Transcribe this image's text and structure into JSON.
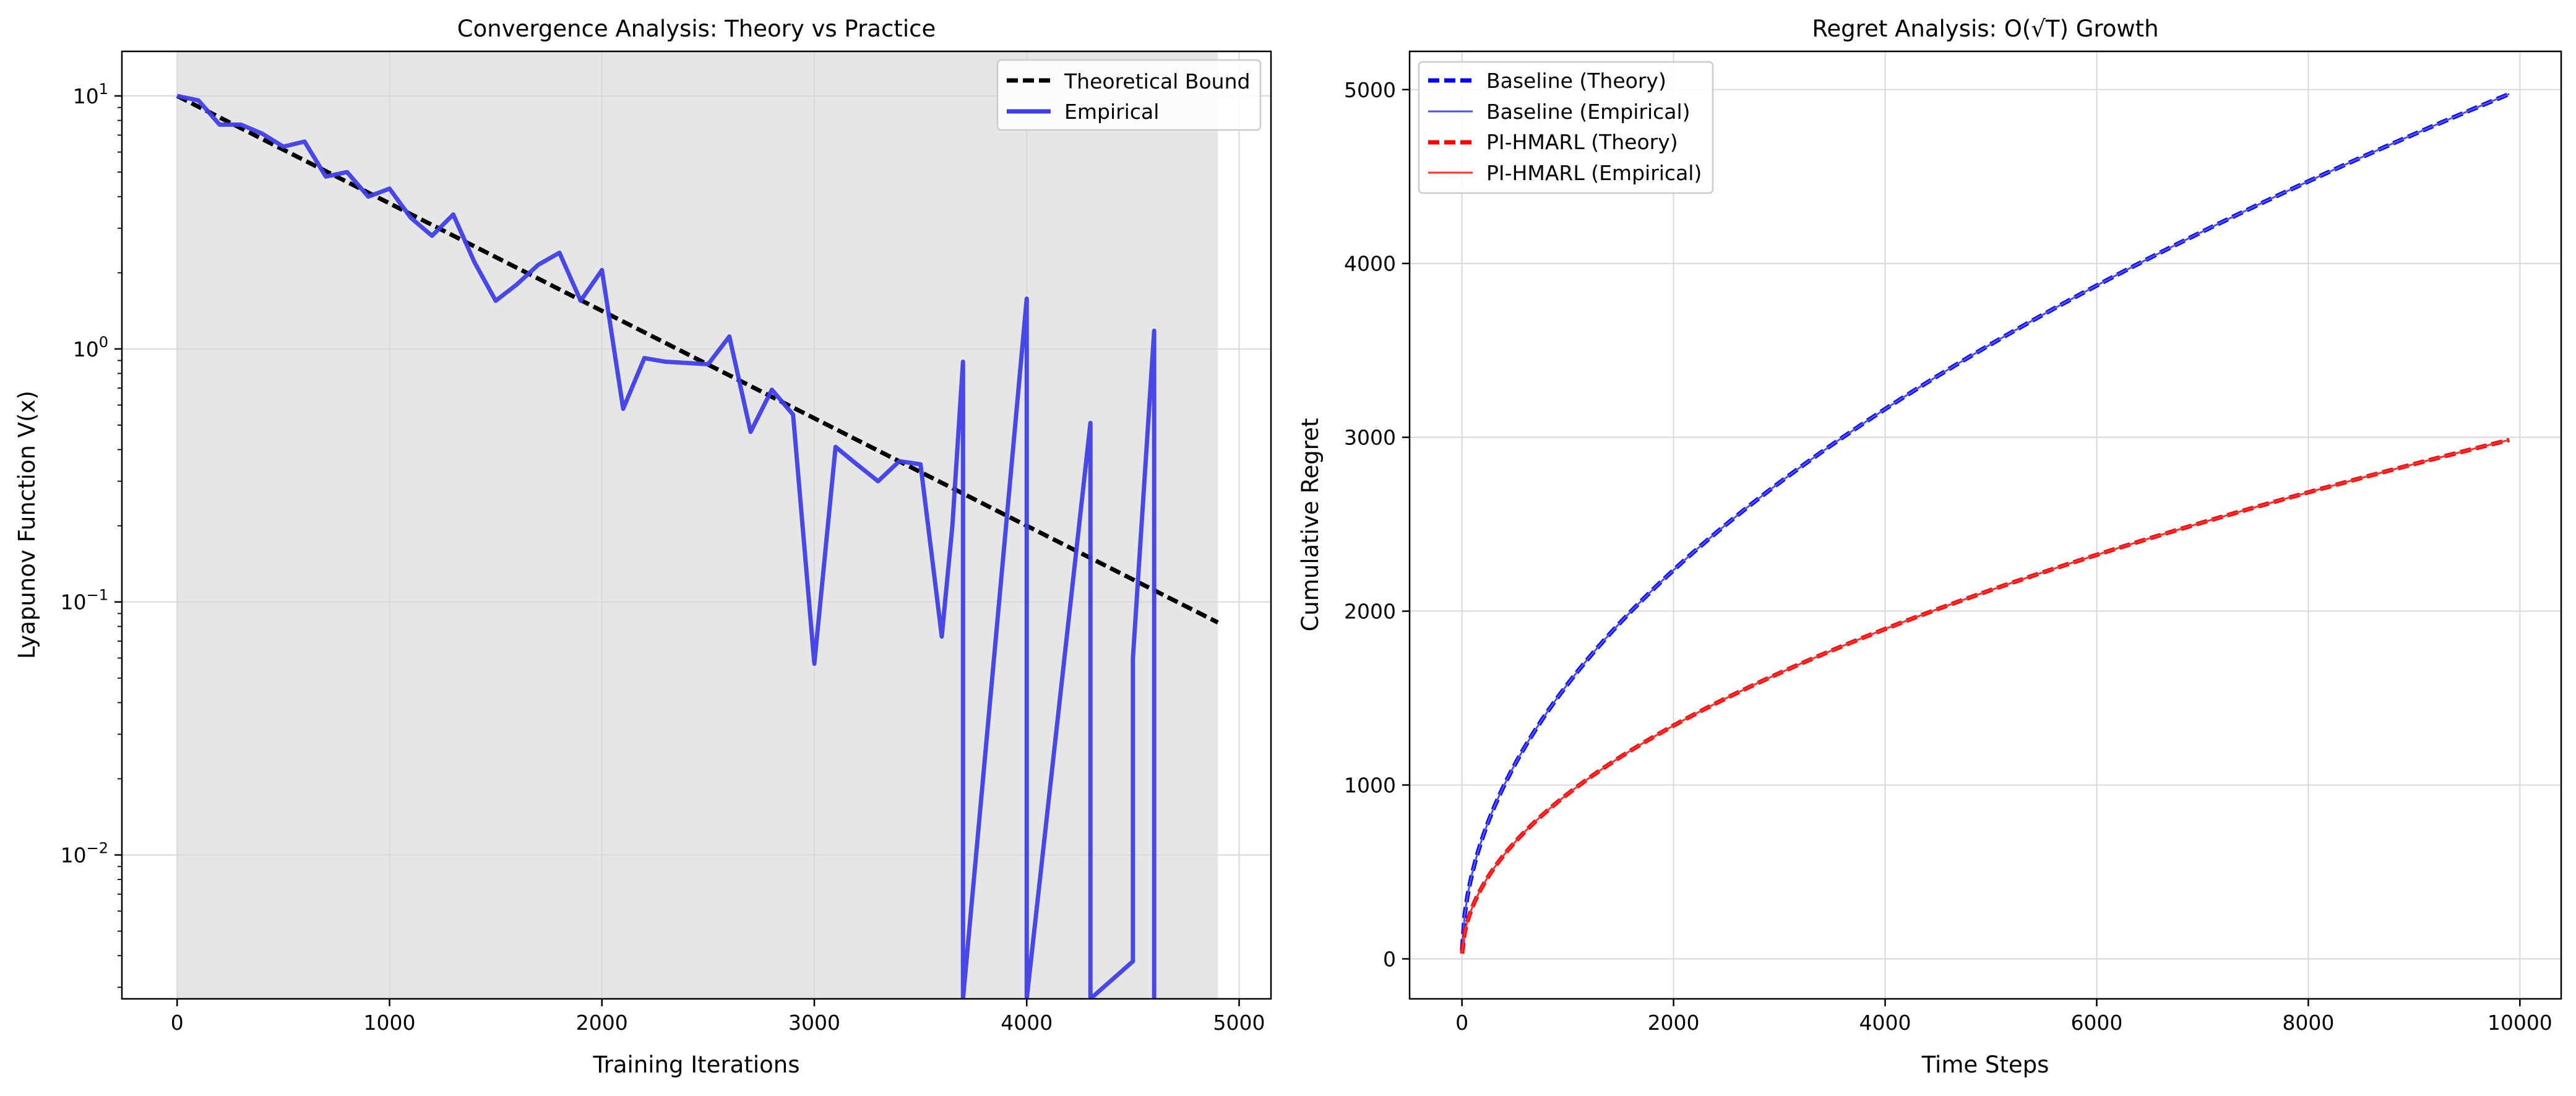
{
  "chart_data": [
    {
      "type": "line",
      "title": "Convergence Analysis: Theory vs Practice",
      "xlabel": "Training Iterations",
      "ylabel": "Lyapunov Function V(x)",
      "xlim": [
        -260,
        5150
      ],
      "xticks": [
        0,
        1000,
        2000,
        3000,
        4000,
        5000
      ],
      "xtick_labels": [
        "0",
        "1000",
        "2000",
        "3000",
        "4000",
        "5000"
      ],
      "yscale": "log",
      "ylim": [
        0.0027,
        15
      ],
      "yticks": [
        0.01,
        0.1,
        1,
        10
      ],
      "ytick_labels": [
        {
          "base": "10",
          "exp": "−2"
        },
        {
          "base": "10",
          "exp": "−1"
        },
        {
          "base": "10",
          "exp": "0"
        },
        {
          "base": "10",
          "exp": "1"
        }
      ],
      "grid": true,
      "legend": {
        "position": "upper right",
        "entries": [
          "Theoretical Bound",
          "Empirical"
        ]
      },
      "shaded_region": {
        "x_end": 4900,
        "color": "#e6e6e6"
      },
      "series": [
        {
          "name": "Theoretical Bound",
          "style": "dashed",
          "color": "#000000",
          "function": {
            "kind": "exponential",
            "y0": 10,
            "rate": 0.000978
          },
          "x_start": 0,
          "x_end": 4900
        },
        {
          "name": "Empirical",
          "style": "solid",
          "color": "#3f3fe8",
          "x": [
            0,
            100,
            200,
            300,
            400,
            500,
            600,
            700,
            800,
            900,
            1000,
            1100,
            1200,
            1300,
            1400,
            1500,
            1600,
            1700,
            1800,
            1900,
            2000,
            2100,
            2200,
            2300,
            2400,
            2500,
            2600,
            2700,
            2800,
            2900,
            3000,
            3100,
            3200,
            3300,
            3400,
            3500,
            3600,
            3650,
            3700,
            3700,
            4000,
            4000,
            4300,
            4300,
            4500,
            4500,
            4600,
            4600
          ],
          "y": [
            10,
            9.6,
            7.7,
            7.7,
            7.1,
            6.3,
            6.6,
            4.8,
            5,
            4,
            4.3,
            3.3,
            2.8,
            3.4,
            2.2,
            1.55,
            1.8,
            2.15,
            2.4,
            1.55,
            2.05,
            0.58,
            0.92,
            0.89,
            0.88,
            0.87,
            1.12,
            0.47,
            0.69,
            0.55,
            0.057,
            0.41,
            0.35,
            0.3,
            0.36,
            0.35,
            0.073,
            0.2,
            0.89,
            0.0027,
            1.58,
            0.0027,
            0.51,
            0.0027,
            0.0038,
            0.06,
            1.18,
            0.0027
          ]
        }
      ]
    },
    {
      "type": "line",
      "title": "Regret Analysis: O(√T) Growth",
      "xlabel": "Time Steps",
      "ylabel": "Cumulative Regret",
      "xlim": [
        -495,
        10390
      ],
      "ylim": [
        -230,
        5220
      ],
      "xticks": [
        0,
        2000,
        4000,
        6000,
        8000,
        10000
      ],
      "xtick_labels": [
        "0",
        "2000",
        "4000",
        "6000",
        "8000",
        "10000"
      ],
      "yticks": [
        0,
        1000,
        2000,
        3000,
        4000,
        5000
      ],
      "ytick_labels": [
        "0",
        "1000",
        "2000",
        "3000",
        "4000",
        "5000"
      ],
      "grid": true,
      "legend": {
        "position": "upper left",
        "entries": [
          "Baseline (Theory)",
          "Baseline (Empirical)",
          "PI-HMARL (Theory)",
          "PI-HMARL (Empirical)"
        ]
      },
      "series": [
        {
          "name": "Baseline (Theory)",
          "style": "dashed",
          "color": "#0000ff",
          "function": {
            "kind": "sqrt",
            "coef": 50
          },
          "x_start": 1,
          "x_end": 9900
        },
        {
          "name": "Baseline (Empirical)",
          "style": "solid",
          "color": "#5050ee",
          "function": {
            "kind": "sqrt",
            "coef": 50
          },
          "x_start": 1,
          "x_end": 9900
        },
        {
          "name": "PI-HMARL (Theory)",
          "style": "dashed",
          "color": "#ff0000",
          "function": {
            "kind": "sqrt",
            "coef": 30
          },
          "x_start": 1,
          "x_end": 9900
        },
        {
          "name": "PI-HMARL (Empirical)",
          "style": "solid",
          "color": "#ff3030",
          "function": {
            "kind": "sqrt",
            "coef": 30
          },
          "x_start": 1,
          "x_end": 9900
        }
      ]
    }
  ]
}
